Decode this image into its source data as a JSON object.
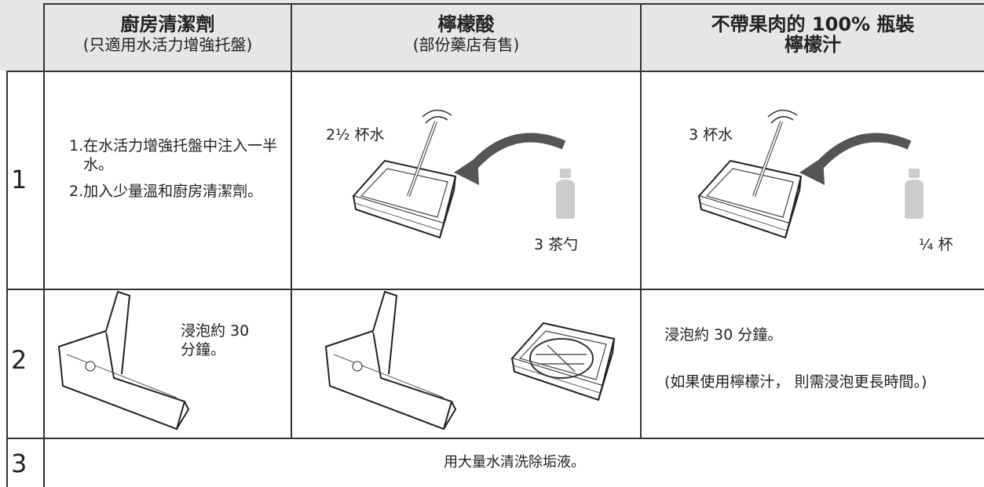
{
  "table": {
    "header": [
      {
        "title_lines": [
          "廚房清潔劑"
        ],
        "subtitle": "(只適用水活力增強托盤)"
      },
      {
        "title_lines": [
          "檸檬酸"
        ],
        "subtitle": "(部份藥店有售)"
      },
      {
        "title_lines": [
          "不帶果肉的 100% 瓶裝",
          "檸檬汁"
        ]
      }
    ],
    "rows": [
      {
        "number": "1",
        "steps": [
          {
            "marker": "1.",
            "text": "在水活力增強托盤中注入一半水。"
          },
          {
            "marker": "2.",
            "text": "加入少量溫和廚房清潔劑。"
          }
        ],
        "citric": {
          "water": "2½ 杯水",
          "amount": "3 茶勺"
        },
        "lemon": {
          "water": "3 杯水",
          "amount": "¼ 杯"
        }
      },
      {
        "number": "2",
        "detergent_text": "浸泡約 30 分鐘。",
        "lemon_text": "浸泡約 30 分鐘。",
        "lemon_note": "(如果使用檸檬汁， 則需浸泡更長時間。)"
      },
      {
        "number": "3",
        "text": "用大量水清洗除垢液。"
      }
    ]
  }
}
